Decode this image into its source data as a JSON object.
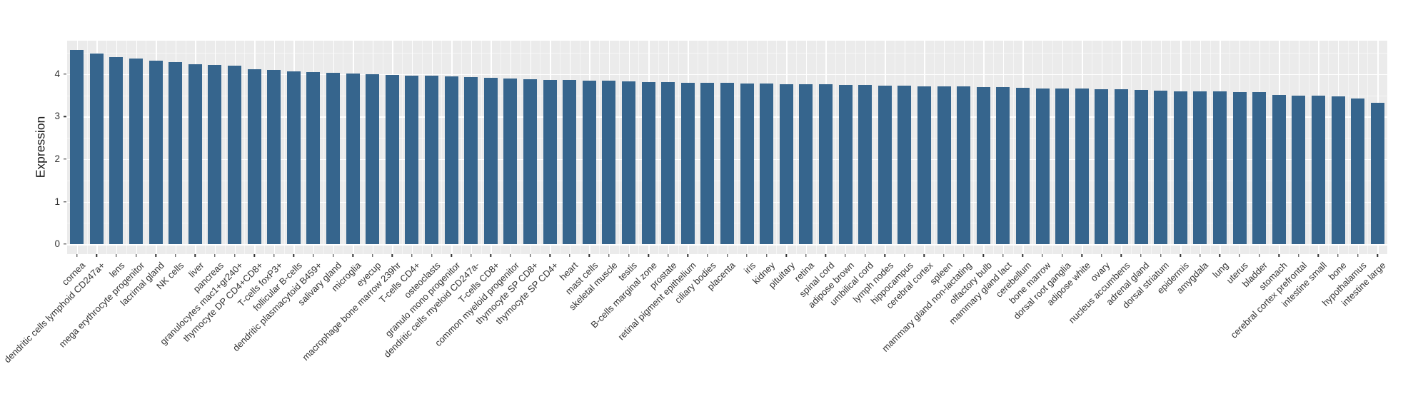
{
  "chart_data": {
    "type": "bar",
    "title": "",
    "xlabel": "",
    "ylabel": "Expression",
    "legend": "none",
    "grid": true,
    "ylim": [
      -0.234,
      4.787
    ],
    "yticks": [
      0,
      1,
      2,
      3,
      4
    ],
    "colors": {
      "bar": "#36658D",
      "panel_background": "#EBEBEB",
      "gridline": "#FFFFFF",
      "axis_text": "#333333"
    },
    "categories": [
      "cornea",
      "dendritic cells lymphoid CD247a+",
      "lens",
      "mega erythrocyte progenitor",
      "lacrimal gland",
      "NK cells",
      "liver",
      "pancreas",
      "granulocytes mac1+gr240+",
      "thymocyte DP CD4+CD8+",
      "T-cells foxP3+",
      "follicular B-cells",
      "dendritic plasmacytoid B459+",
      "salivary gland",
      "microglia",
      "eyecup",
      "macrophage bone marrow 239hr",
      "T-cells CD4+",
      "osteoclasts",
      "granulo mono progenitor",
      "dendritic cells myeloid CD247a-",
      "T-cells CD8+",
      "common myeloid progenitor",
      "thymocyte SP CD8+",
      "thymocyte SP CD4+",
      "heart",
      "mast cells",
      "skeletal muscle",
      "testis",
      "B-cells marginal zone",
      "prostate",
      "retinal pigment epithelium",
      "ciliary bodies",
      "placenta",
      "iris",
      "kidney",
      "pituitary",
      "retina",
      "spinal cord",
      "adipose brown",
      "umbilical cord",
      "lymph nodes",
      "hippocampus",
      "cerebral cortex",
      "spleen",
      "mammary gland non-lactating",
      "olfactory bulb",
      "mammary gland lact",
      "cerebellum",
      "bone marrow",
      "dorsal root ganglia",
      "adipose white",
      "ovary",
      "nucleus accumbens",
      "adrenal gland",
      "dorsal striatum",
      "epidermis",
      "amygdala",
      "lung",
      "uterus",
      "bladder",
      "stomach",
      "cerebral cortex prefrontal",
      "intestine small",
      "bone",
      "hypothalamus",
      "intestine large"
    ],
    "values": [
      4.57,
      4.48,
      4.4,
      4.36,
      4.31,
      4.28,
      4.24,
      4.22,
      4.2,
      4.12,
      4.1,
      4.07,
      4.05,
      4.03,
      4.01,
      4.0,
      3.98,
      3.97,
      3.96,
      3.95,
      3.93,
      3.92,
      3.89,
      3.88,
      3.87,
      3.86,
      3.85,
      3.84,
      3.83,
      3.82,
      3.81,
      3.8,
      3.79,
      3.79,
      3.78,
      3.78,
      3.77,
      3.76,
      3.76,
      3.75,
      3.74,
      3.73,
      3.73,
      3.72,
      3.71,
      3.71,
      3.7,
      3.69,
      3.68,
      3.67,
      3.67,
      3.66,
      3.65,
      3.64,
      3.62,
      3.61,
      3.6,
      3.59,
      3.59,
      3.58,
      3.57,
      3.51,
      3.5,
      3.49,
      3.48,
      3.43,
      3.32
    ]
  }
}
